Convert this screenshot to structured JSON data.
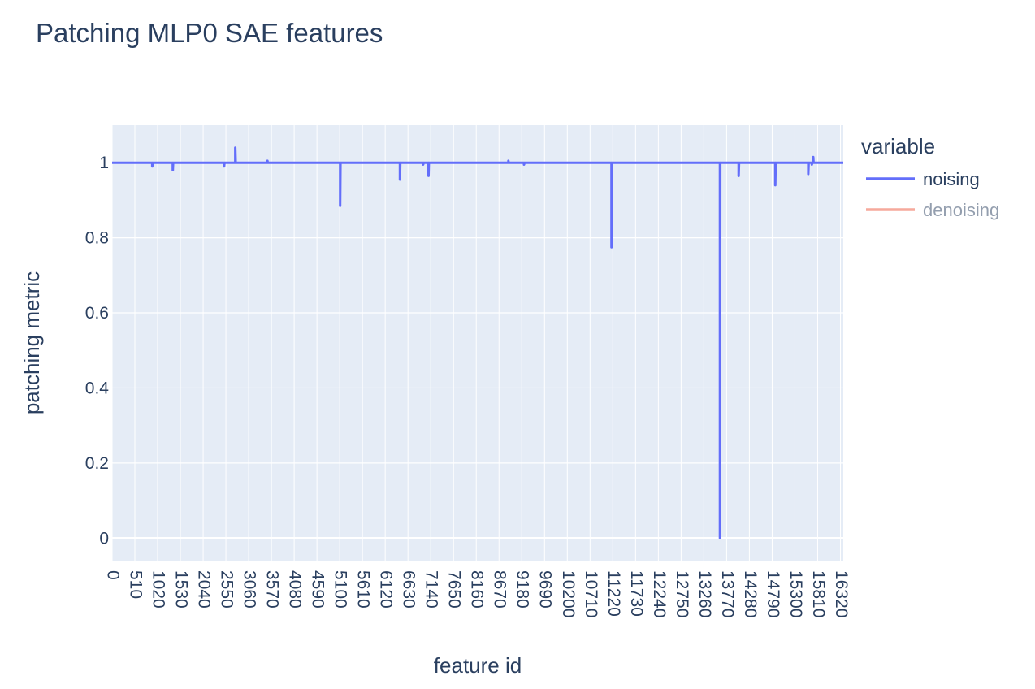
{
  "chart_data": {
    "type": "line",
    "title": "Patching MLP0 SAE features",
    "xlabel": "feature id",
    "ylabel": "patching metric",
    "xlim": [
      0,
      16384
    ],
    "ylim": [
      -0.06,
      1.1
    ],
    "x_ticks": [
      0,
      510,
      1020,
      1530,
      2040,
      2550,
      3060,
      3570,
      4080,
      4590,
      5100,
      5610,
      6120,
      6630,
      7140,
      7650,
      8160,
      8670,
      9180,
      9690,
      10200,
      10710,
      11220,
      11730,
      12240,
      12750,
      13260,
      13770,
      14280,
      14790,
      15300,
      15810,
      16320
    ],
    "y_ticks": [
      0,
      0.2,
      0.4,
      0.6,
      0.8,
      1
    ],
    "y_tick_labels": [
      "0",
      "0.2",
      "0.4",
      "0.6",
      "0.8",
      "1"
    ],
    "baseline": 1,
    "grid": true,
    "legend_title": "variable",
    "legend_placement": "top-right",
    "series": [
      {
        "name": "noising",
        "color": "#636efa",
        "visible": true,
        "spikes": [
          {
            "x": 900,
            "y": 0.99
          },
          {
            "x": 1360,
            "y": 0.98
          },
          {
            "x": 2510,
            "y": 0.99
          },
          {
            "x": 2760,
            "y": 1.04
          },
          {
            "x": 3480,
            "y": 1.005
          },
          {
            "x": 5110,
            "y": 0.885
          },
          {
            "x": 6450,
            "y": 0.955
          },
          {
            "x": 6970,
            "y": 0.995
          },
          {
            "x": 7090,
            "y": 0.965
          },
          {
            "x": 8880,
            "y": 1.005
          },
          {
            "x": 9230,
            "y": 0.995
          },
          {
            "x": 11190,
            "y": 0.775
          },
          {
            "x": 13620,
            "y": 0.0
          },
          {
            "x": 14040,
            "y": 0.965
          },
          {
            "x": 14860,
            "y": 0.94
          },
          {
            "x": 15600,
            "y": 0.97
          },
          {
            "x": 15710,
            "y": 1.015
          },
          {
            "x": 15680,
            "y": 0.995
          }
        ]
      },
      {
        "name": "denoising",
        "color": "#EF553B",
        "visible": false
      }
    ]
  }
}
